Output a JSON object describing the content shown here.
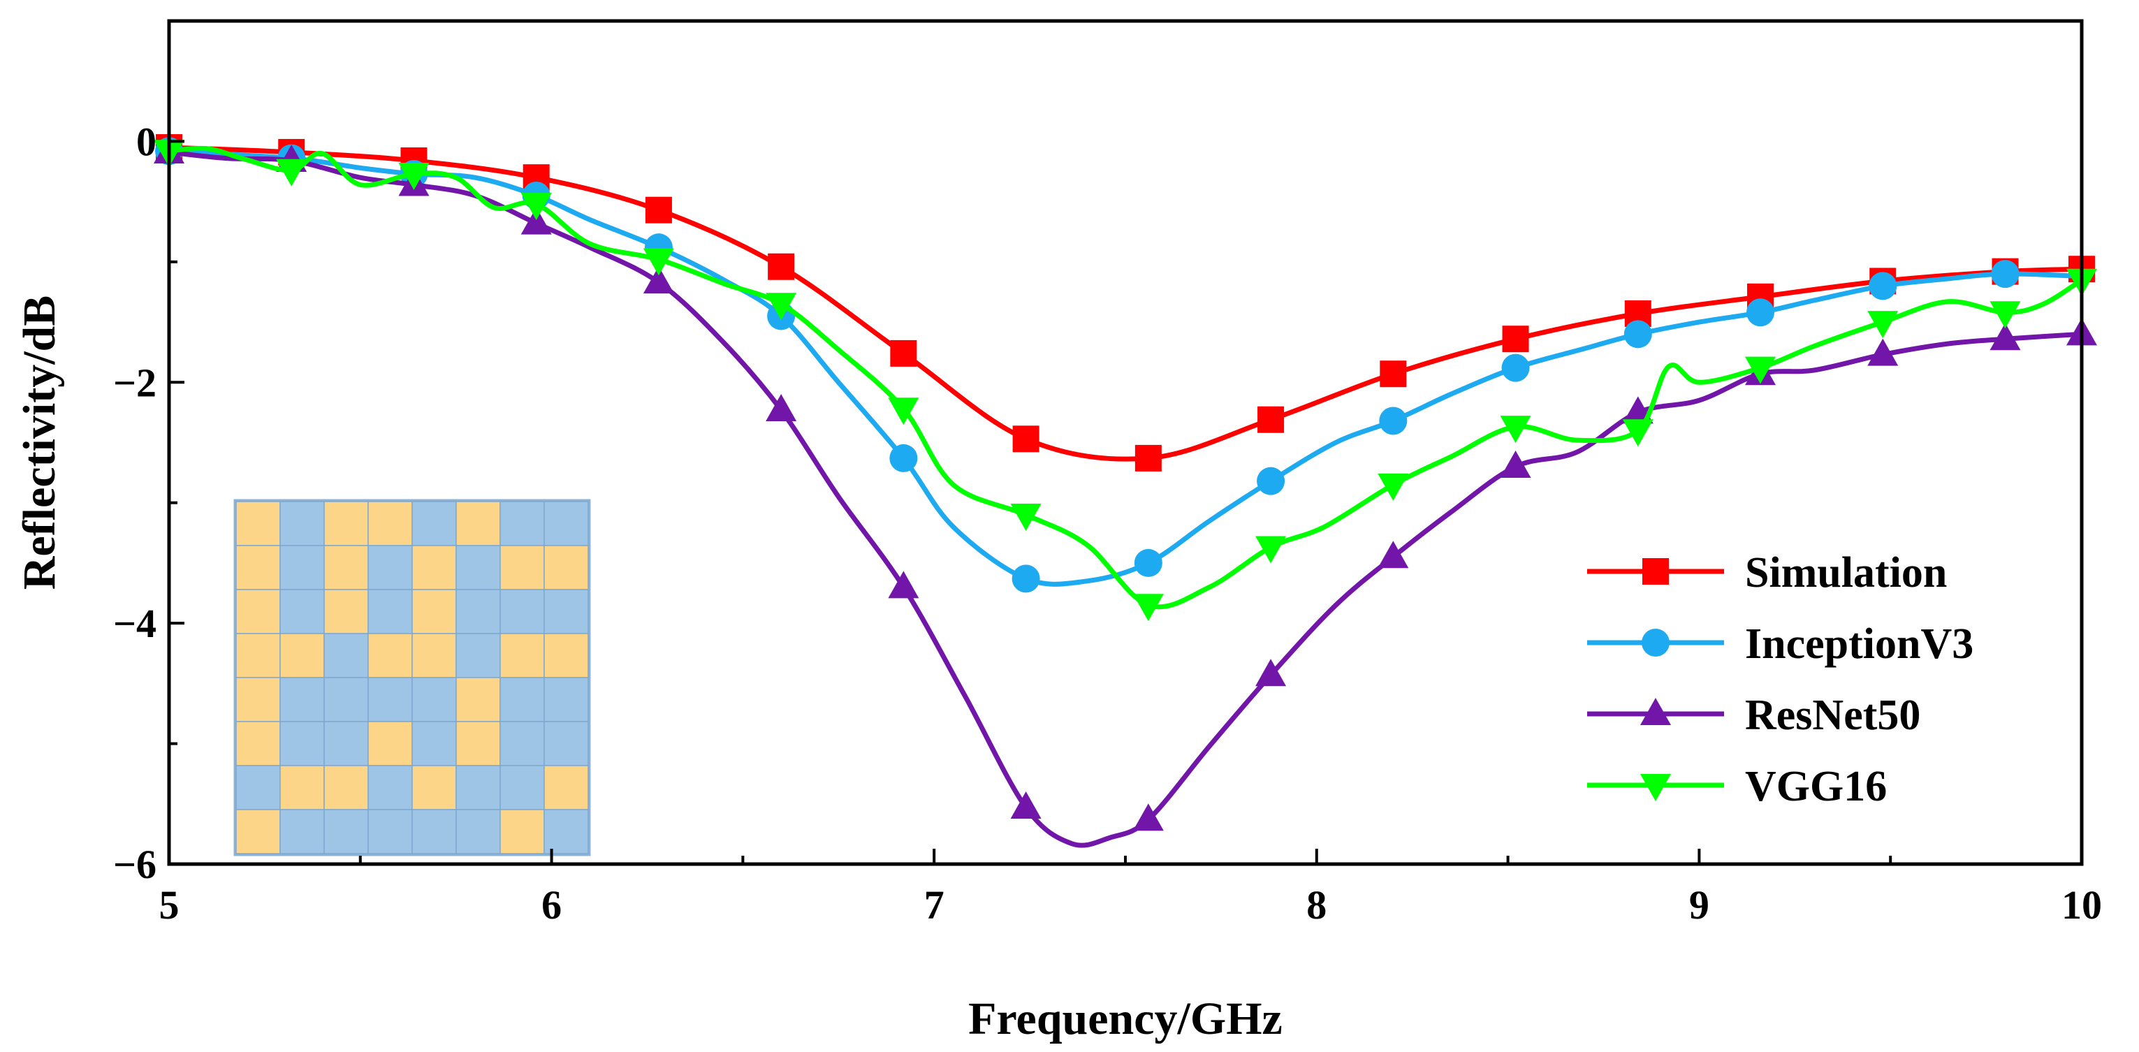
{
  "chart_data": {
    "type": "line",
    "title": "",
    "xlabel": "Frequency/GHz",
    "ylabel": "Reflectivity/dB",
    "xlim": [
      5,
      10
    ],
    "ylim": [
      -6,
      1
    ],
    "x_ticks": [
      5,
      6,
      7,
      8,
      9,
      10
    ],
    "x_tick_labels": [
      "5",
      "6",
      "7",
      "8",
      "9",
      "10"
    ],
    "y_ticks": [
      0,
      -2,
      -4,
      -6
    ],
    "y_tick_labels": [
      "0",
      "−2",
      "−4",
      "−6"
    ],
    "legend_position": "bottom-right",
    "series": [
      {
        "name": "Simulation",
        "color": "#ff0000",
        "marker": "square",
        "x": [
          5.0,
          5.32,
          5.64,
          5.96,
          6.28,
          6.6,
          6.92,
          7.24,
          7.56,
          7.88,
          8.2,
          8.52,
          8.84,
          9.16,
          9.48,
          9.8,
          10.0
        ],
        "y": [
          -0.05,
          -0.09,
          -0.16,
          -0.3,
          -0.57,
          -1.04,
          -1.76,
          -2.47,
          -2.63,
          -2.31,
          -1.93,
          -1.64,
          -1.43,
          -1.29,
          -1.16,
          -1.08,
          -1.06
        ],
        "markers_x": [
          5.0,
          5.32,
          5.64,
          5.96,
          6.28,
          6.6,
          6.92,
          7.24,
          7.56,
          7.88,
          8.2,
          8.52,
          8.84,
          9.16,
          9.48,
          9.8,
          10.0
        ],
        "markers_y": [
          -0.05,
          -0.09,
          -0.16,
          -0.3,
          -0.57,
          -1.04,
          -1.76,
          -2.47,
          -2.63,
          -2.31,
          -1.93,
          -1.64,
          -1.43,
          -1.29,
          -1.16,
          -1.08,
          -1.06
        ]
      },
      {
        "name": "InceptionV3",
        "color": "#1eaaf1",
        "marker": "circle",
        "x": [
          5.0,
          5.32,
          5.5,
          5.64,
          5.8,
          5.96,
          6.1,
          6.28,
          6.45,
          6.6,
          6.75,
          6.92,
          7.05,
          7.24,
          7.4,
          7.56,
          7.72,
          7.88,
          8.05,
          8.2,
          8.35,
          8.52,
          8.7,
          8.84,
          9.0,
          9.16,
          9.3,
          9.48,
          9.65,
          9.8,
          10.0
        ],
        "y": [
          -0.08,
          -0.14,
          -0.22,
          -0.27,
          -0.3,
          -0.45,
          -0.65,
          -0.88,
          -1.15,
          -1.45,
          -2.0,
          -2.63,
          -3.2,
          -3.63,
          -3.65,
          -3.5,
          -3.15,
          -2.82,
          -2.5,
          -2.32,
          -2.1,
          -1.88,
          -1.72,
          -1.6,
          -1.5,
          -1.42,
          -1.32,
          -1.2,
          -1.14,
          -1.1,
          -1.12
        ],
        "markers_x": [
          5.0,
          5.32,
          5.64,
          5.96,
          6.28,
          6.6,
          6.92,
          7.24,
          7.56,
          7.88,
          8.2,
          8.52,
          8.84,
          9.16,
          9.48,
          9.8
        ],
        "markers_y": [
          -0.08,
          -0.14,
          -0.27,
          -0.45,
          -0.88,
          -1.45,
          -2.63,
          -3.63,
          -3.5,
          -2.82,
          -2.32,
          -1.88,
          -1.6,
          -1.42,
          -1.2,
          -1.1
        ]
      },
      {
        "name": "ResNet50",
        "color": "#7116a8",
        "marker": "triangle-up",
        "x": [
          5.0,
          5.15,
          5.32,
          5.5,
          5.64,
          5.8,
          5.96,
          6.1,
          6.28,
          6.45,
          6.6,
          6.75,
          6.92,
          7.08,
          7.24,
          7.36,
          7.46,
          7.56,
          7.72,
          7.88,
          8.05,
          8.2,
          8.35,
          8.52,
          8.68,
          8.84,
          9.0,
          9.16,
          9.3,
          9.48,
          9.65,
          9.8,
          10.0
        ],
        "y": [
          -0.09,
          -0.14,
          -0.16,
          -0.3,
          -0.36,
          -0.45,
          -0.68,
          -0.88,
          -1.17,
          -1.67,
          -2.23,
          -2.95,
          -3.7,
          -4.6,
          -5.53,
          -5.83,
          -5.78,
          -5.63,
          -5.02,
          -4.43,
          -3.85,
          -3.45,
          -3.08,
          -2.7,
          -2.58,
          -2.25,
          -2.15,
          -1.93,
          -1.9,
          -1.77,
          -1.68,
          -1.64,
          -1.6
        ],
        "markers_x": [
          5.0,
          5.32,
          5.64,
          5.96,
          6.28,
          6.6,
          6.92,
          7.24,
          7.56,
          7.88,
          8.2,
          8.52,
          8.84,
          9.16,
          9.48,
          9.8,
          10.0
        ],
        "markers_y": [
          -0.09,
          -0.16,
          -0.36,
          -0.68,
          -1.17,
          -2.23,
          -3.7,
          -5.53,
          -5.63,
          -4.43,
          -3.45,
          -2.7,
          -2.25,
          -1.93,
          -1.77,
          -1.64,
          -1.6
        ]
      },
      {
        "name": "VGG16",
        "color": "#00ff00",
        "marker": "triangle-down",
        "x": [
          5.0,
          5.1,
          5.2,
          5.32,
          5.4,
          5.5,
          5.64,
          5.75,
          5.85,
          5.96,
          6.1,
          6.28,
          6.45,
          6.6,
          6.75,
          6.92,
          7.05,
          7.24,
          7.4,
          7.56,
          7.72,
          7.88,
          8.02,
          8.2,
          8.35,
          8.52,
          8.68,
          8.84,
          8.92,
          9.0,
          9.16,
          9.3,
          9.48,
          9.65,
          9.8,
          9.9,
          10.0
        ],
        "y": [
          -0.08,
          -0.06,
          -0.15,
          -0.24,
          -0.1,
          -0.36,
          -0.27,
          -0.3,
          -0.55,
          -0.52,
          -0.85,
          -0.98,
          -1.18,
          -1.35,
          -1.73,
          -2.22,
          -2.85,
          -3.1,
          -3.35,
          -3.85,
          -3.7,
          -3.37,
          -3.2,
          -2.85,
          -2.62,
          -2.37,
          -2.48,
          -2.4,
          -1.87,
          -2.0,
          -1.88,
          -1.7,
          -1.5,
          -1.33,
          -1.42,
          -1.35,
          -1.15
        ],
        "markers_x": [
          5.0,
          5.32,
          5.64,
          5.96,
          6.28,
          6.6,
          6.92,
          7.24,
          7.56,
          7.88,
          8.2,
          8.52,
          8.84,
          9.16,
          9.48,
          9.8,
          10.0
        ],
        "markers_y": [
          -0.08,
          -0.24,
          -0.27,
          -0.52,
          -0.98,
          -1.35,
          -2.22,
          -3.1,
          -3.85,
          -3.37,
          -2.85,
          -2.37,
          -2.4,
          -1.88,
          -1.5,
          -1.42,
          -1.15
        ]
      }
    ],
    "inset": {
      "description_colors": {
        "yellow": "#fcd588",
        "blue": "#9ec4e6"
      },
      "grid": [
        [
          1,
          0,
          1,
          1,
          0,
          1,
          0,
          0
        ],
        [
          1,
          0,
          1,
          0,
          1,
          0,
          1,
          1
        ],
        [
          1,
          0,
          1,
          0,
          1,
          0,
          0,
          0
        ],
        [
          1,
          1,
          0,
          1,
          1,
          0,
          1,
          1
        ],
        [
          1,
          0,
          0,
          0,
          0,
          1,
          0,
          0
        ],
        [
          1,
          0,
          0,
          1,
          0,
          1,
          0,
          0
        ],
        [
          0,
          1,
          1,
          0,
          1,
          0,
          0,
          1
        ],
        [
          1,
          0,
          0,
          0,
          0,
          0,
          1,
          0
        ]
      ]
    }
  }
}
